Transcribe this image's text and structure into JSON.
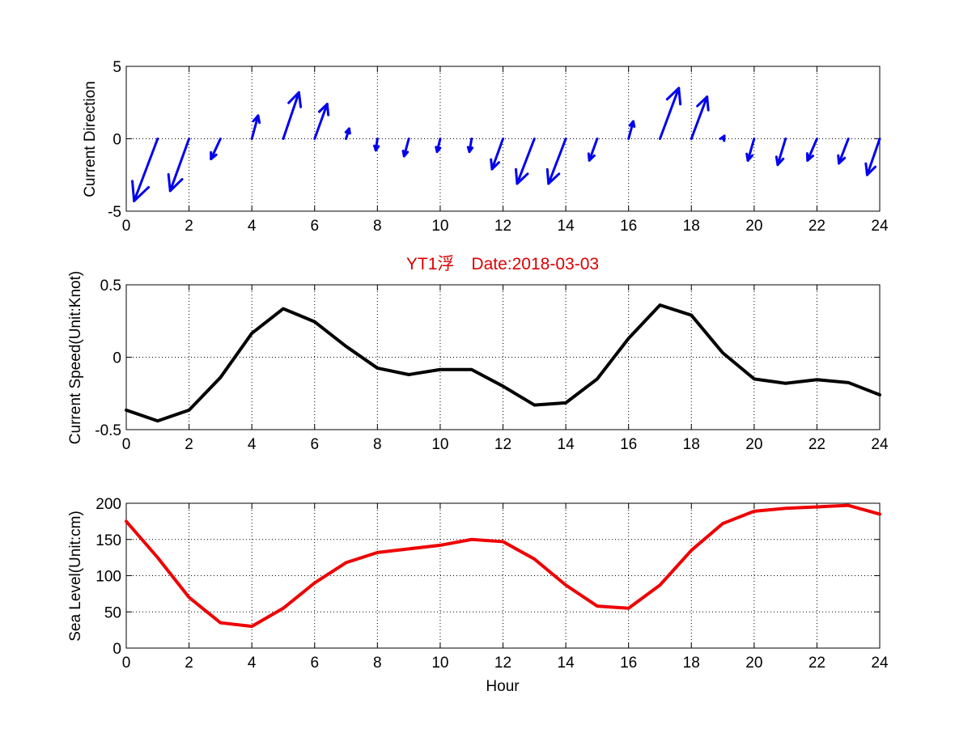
{
  "colors": {
    "background": "#ffffff",
    "axes": "#000000",
    "grid": "#000000",
    "arrows": "#0000ee",
    "speed_line": "#000000",
    "sea_level_line": "#ee0000",
    "title": "#dd0000"
  },
  "chart_data": [
    {
      "type": "quiver",
      "title": "",
      "xlabel": "",
      "ylabel": "Current Direction",
      "xlim": [
        0,
        24
      ],
      "ylim": [
        -5,
        5
      ],
      "grid": true,
      "xticks": [
        "0",
        "2",
        "4",
        "6",
        "8",
        "10",
        "12",
        "14",
        "16",
        "18",
        "20",
        "22",
        "24"
      ],
      "yticks": [
        "-5",
        "0",
        "5"
      ],
      "x": [
        1,
        2,
        3,
        4,
        5,
        6,
        7,
        8,
        9,
        10,
        11,
        12,
        13,
        14,
        15,
        16,
        17,
        18,
        19,
        20,
        21,
        22,
        23,
        24
      ],
      "series": [
        {
          "u": [
            -0.75,
            -0.6,
            -0.3,
            0.2,
            0.5,
            0.4,
            0.1,
            -0.05,
            -0.15,
            -0.1,
            -0.07,
            -0.35,
            -0.55,
            -0.55,
            -0.25,
            0.15,
            0.6,
            0.5,
            0.05,
            -0.2,
            -0.25,
            -0.3,
            -0.3,
            -0.4
          ],
          "v": [
            -4.3,
            -3.6,
            -1.4,
            1.6,
            3.2,
            2.4,
            0.7,
            -0.8,
            -1.2,
            -0.9,
            -0.9,
            -2.1,
            -3.1,
            -3.1,
            -1.5,
            1.2,
            3.5,
            2.9,
            0.2,
            -1.5,
            -1.8,
            -1.5,
            -1.7,
            -2.5
          ]
        }
      ]
    },
    {
      "type": "line",
      "title": "YT1浮　Date:2018-03-03",
      "xlabel": "",
      "ylabel": "Current Speed(Unit:Knot)",
      "xlim": [
        0,
        24
      ],
      "ylim": [
        -0.5,
        0.5
      ],
      "grid": true,
      "xticks": [
        "0",
        "2",
        "4",
        "6",
        "8",
        "10",
        "12",
        "14",
        "16",
        "18",
        "20",
        "22",
        "24"
      ],
      "yticks": [
        "-0.5",
        "0",
        "0.5"
      ],
      "x": [
        0,
        1,
        2,
        3,
        4,
        5,
        6,
        7,
        8,
        9,
        10,
        11,
        12,
        13,
        14,
        15,
        16,
        17,
        18,
        19,
        20,
        21,
        22,
        23,
        24
      ],
      "series": [
        {
          "values": [
            -0.365,
            -0.44,
            -0.365,
            -0.14,
            0.165,
            0.335,
            0.245,
            0.075,
            -0.075,
            -0.12,
            -0.085,
            -0.085,
            -0.2,
            -0.33,
            -0.315,
            -0.15,
            0.13,
            0.36,
            0.29,
            0.03,
            -0.15,
            -0.18,
            -0.155,
            -0.175,
            -0.26
          ]
        }
      ]
    },
    {
      "type": "line",
      "title": "",
      "xlabel": "Hour",
      "ylabel": "Sea Level(Unit:cm)",
      "xlim": [
        0,
        24
      ],
      "ylim": [
        0,
        200
      ],
      "grid": true,
      "xticks": [
        "0",
        "2",
        "4",
        "6",
        "8",
        "10",
        "12",
        "14",
        "16",
        "18",
        "20",
        "22",
        "24"
      ],
      "yticks": [
        "0",
        "50",
        "100",
        "150",
        "200"
      ],
      "x": [
        0,
        1,
        2,
        3,
        4,
        5,
        6,
        7,
        8,
        9,
        10,
        11,
        12,
        13,
        14,
        15,
        16,
        17,
        18,
        19,
        20,
        21,
        22,
        23,
        24
      ],
      "series": [
        {
          "values": [
            175,
            125,
            70,
            35,
            30,
            55,
            90,
            118,
            132,
            137,
            142,
            150,
            147,
            123,
            87,
            58,
            55,
            87,
            135,
            172,
            189,
            193,
            195,
            197,
            185
          ]
        }
      ]
    }
  ]
}
